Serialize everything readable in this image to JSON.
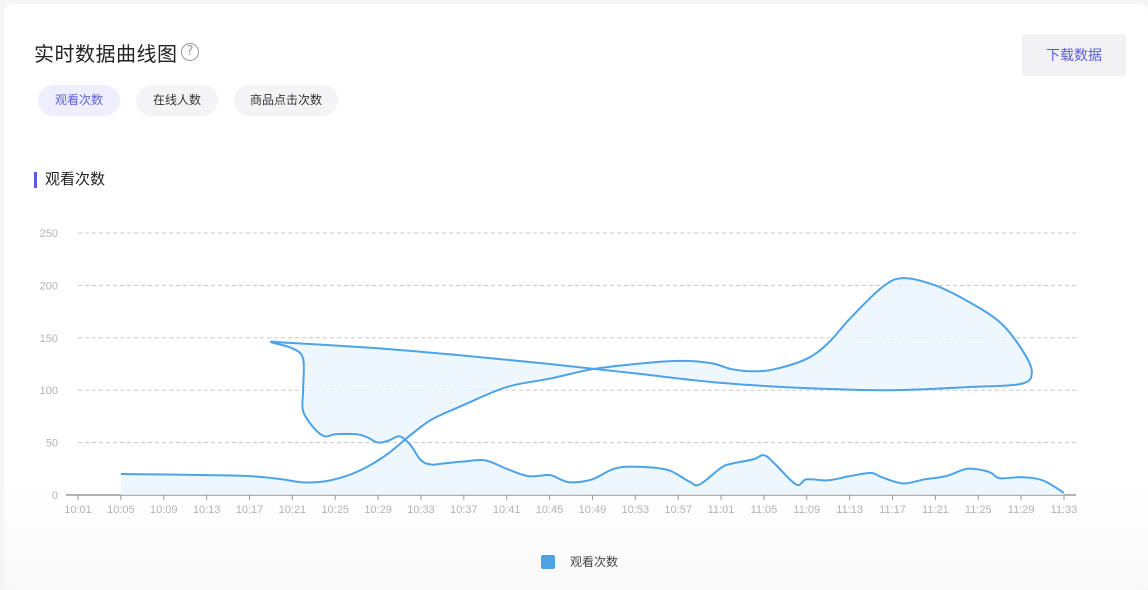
{
  "header": {
    "title": "实时数据曲线图",
    "help_glyph": "?",
    "download_label": "下载数据"
  },
  "tabs": [
    {
      "label": "观看次数",
      "active": true
    },
    {
      "label": "在线人数",
      "active": false
    },
    {
      "label": "商品点击次数",
      "active": false
    }
  ],
  "section_title": "观看次数",
  "colors": {
    "line": "#4da3e8",
    "fill": "#eaf4fd",
    "accent": "#5b5de0",
    "grid": "#c8c8c8"
  },
  "chart_data": {
    "type": "line",
    "title": "",
    "xlabel": "",
    "ylabel": "",
    "ylim": [
      0,
      250
    ],
    "yticks": [
      0,
      50,
      100,
      150,
      200,
      250
    ],
    "xticks": [
      "10:01",
      "10:05",
      "10:09",
      "10:13",
      "10:17",
      "10:21",
      "10:25",
      "10:29",
      "10:33",
      "10:37",
      "10:41",
      "10:45",
      "10:49",
      "10:53",
      "10:57",
      "11:01",
      "11:05",
      "11:09",
      "11:13",
      "11:17",
      "11:21",
      "11:25",
      "11:29",
      "11:33"
    ],
    "grid": true,
    "legend_position": "bottom-center",
    "series": [
      {
        "name": "观看次数",
        "points": [
          [
            "10:05",
            20
          ],
          [
            "10:13",
            19
          ],
          [
            "10:17",
            18
          ],
          [
            "10:20",
            15
          ],
          [
            "10:22",
            12
          ],
          [
            "10:24",
            13
          ],
          [
            "10:26",
            18
          ],
          [
            "10:28",
            27
          ],
          [
            "10:30",
            40
          ],
          [
            "10:32",
            57
          ],
          [
            "10:34",
            72
          ],
          [
            "10:37",
            86
          ],
          [
            "10:41",
            103
          ],
          [
            "10:45",
            111
          ],
          [
            "10:49",
            120
          ],
          [
            "10:53",
            125
          ],
          [
            "10:57",
            128
          ],
          [
            "11:00",
            126
          ],
          [
            "11:02",
            120
          ],
          [
            "11:04",
            118
          ],
          [
            "11:06",
            120
          ],
          [
            "11:09",
            130
          ],
          [
            "11:11",
            145
          ],
          [
            "11:13",
            168
          ],
          [
            "11:16",
            198
          ],
          [
            "11:18",
            207
          ],
          [
            "11:21",
            200
          ],
          [
            "11:24",
            185
          ],
          [
            "11:27",
            165
          ],
          [
            "11:29",
            140
          ],
          [
            "11:30",
            118
          ],
          [
            "11:29",
            106
          ],
          [
            "11:24",
            103
          ],
          [
            "11:17",
            100
          ],
          [
            "11:09",
            102
          ],
          [
            "11:01",
            107
          ],
          [
            "10:53",
            116
          ],
          [
            "10:45",
            125
          ],
          [
            "10:37",
            133
          ],
          [
            "10:29",
            140
          ],
          [
            "10:21",
            145
          ],
          [
            "10:19",
            146
          ],
          [
            "10:21",
            140
          ],
          [
            "10:22",
            130
          ],
          [
            "10:22",
            100
          ],
          [
            "10:22",
            80
          ],
          [
            "10:23",
            64
          ],
          [
            "10:24",
            56
          ],
          [
            "10:25",
            58
          ],
          [
            "10:27",
            58
          ],
          [
            "10:28",
            55
          ],
          [
            "10:29",
            50
          ],
          [
            "10:30",
            52
          ],
          [
            "10:31",
            56
          ],
          [
            "10:32",
            48
          ],
          [
            "10:33",
            33
          ],
          [
            "10:34",
            29
          ],
          [
            "10:35",
            30
          ],
          [
            "10:37",
            32
          ],
          [
            "10:39",
            33
          ],
          [
            "10:41",
            25
          ],
          [
            "10:43",
            18
          ],
          [
            "10:45",
            19
          ],
          [
            "10:46",
            15
          ],
          [
            "10:47",
            12
          ],
          [
            "10:49",
            15
          ],
          [
            "10:51",
            25
          ],
          [
            "10:53",
            27
          ],
          [
            "10:56",
            24
          ],
          [
            "10:58",
            13
          ],
          [
            "10:59",
            10
          ],
          [
            "11:01",
            26
          ],
          [
            "11:02",
            30
          ],
          [
            "11:04",
            34
          ],
          [
            "11:05",
            38
          ],
          [
            "11:06",
            30
          ],
          [
            "11:08",
            10
          ],
          [
            "11:09",
            15
          ],
          [
            "11:11",
            14
          ],
          [
            "11:13",
            18
          ],
          [
            "11:15",
            21
          ],
          [
            "11:16",
            17
          ],
          [
            "11:18",
            11
          ],
          [
            "11:20",
            15
          ],
          [
            "11:22",
            18
          ],
          [
            "11:24",
            25
          ],
          [
            "11:26",
            22
          ],
          [
            "11:27",
            16
          ],
          [
            "11:29",
            17
          ],
          [
            "11:31",
            14
          ],
          [
            "11:33",
            2
          ]
        ]
      }
    ]
  }
}
